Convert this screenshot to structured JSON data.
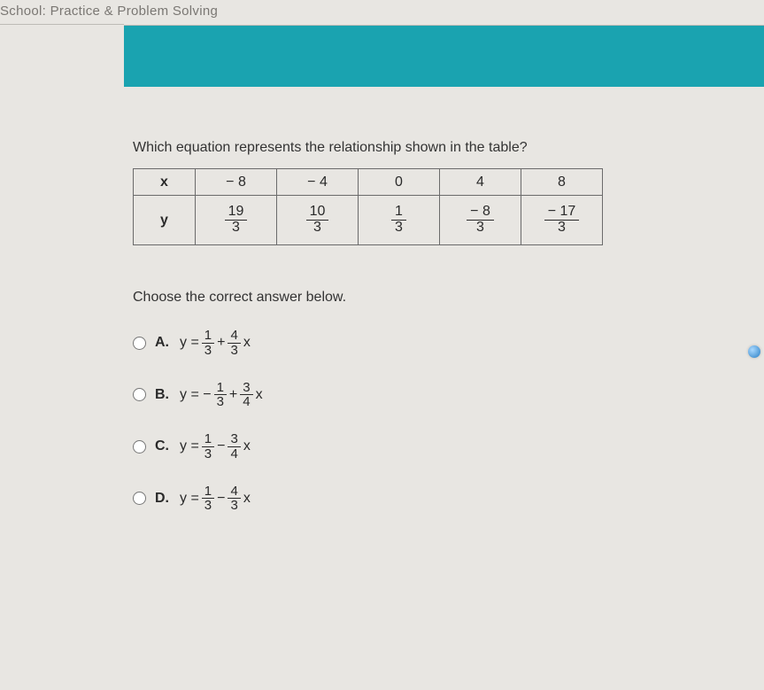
{
  "header": {
    "breadcrumb": "School: Practice & Problem Solving"
  },
  "question": "Which equation represents the relationship shown in the table?",
  "table": {
    "x_label": "x",
    "y_label": "y",
    "x_values": [
      "− 8",
      "− 4",
      "0",
      "4",
      "8"
    ],
    "y_values": [
      {
        "num": "19",
        "den": "3"
      },
      {
        "num": "10",
        "den": "3"
      },
      {
        "num": "1",
        "den": "3"
      },
      {
        "num": "− 8",
        "den": "3"
      },
      {
        "num": "− 17",
        "den": "3"
      }
    ]
  },
  "prompt": "Choose the correct answer below.",
  "choices": {
    "a": {
      "letter": "A.",
      "prefix": "y =",
      "f1n": "1",
      "f1d": "3",
      "op": "+",
      "f2n": "4",
      "f2d": "3",
      "suffix": "x"
    },
    "b": {
      "letter": "B.",
      "prefix": "y = −",
      "f1n": "1",
      "f1d": "3",
      "op": "+",
      "f2n": "3",
      "f2d": "4",
      "suffix": "x"
    },
    "c": {
      "letter": "C.",
      "prefix": "y =",
      "f1n": "1",
      "f1d": "3",
      "op": "−",
      "f2n": "3",
      "f2d": "4",
      "suffix": "x"
    },
    "d": {
      "letter": "D.",
      "prefix": "y =",
      "f1n": "1",
      "f1d": "3",
      "op": "−",
      "f2n": "4",
      "f2d": "3",
      "suffix": "x"
    }
  },
  "colors": {
    "page_bg": "#e8e6e2",
    "bar_bg": "#1aa3b0",
    "text": "#2a2a2a",
    "muted": "#7a7773",
    "border": "#6b6b6b"
  }
}
